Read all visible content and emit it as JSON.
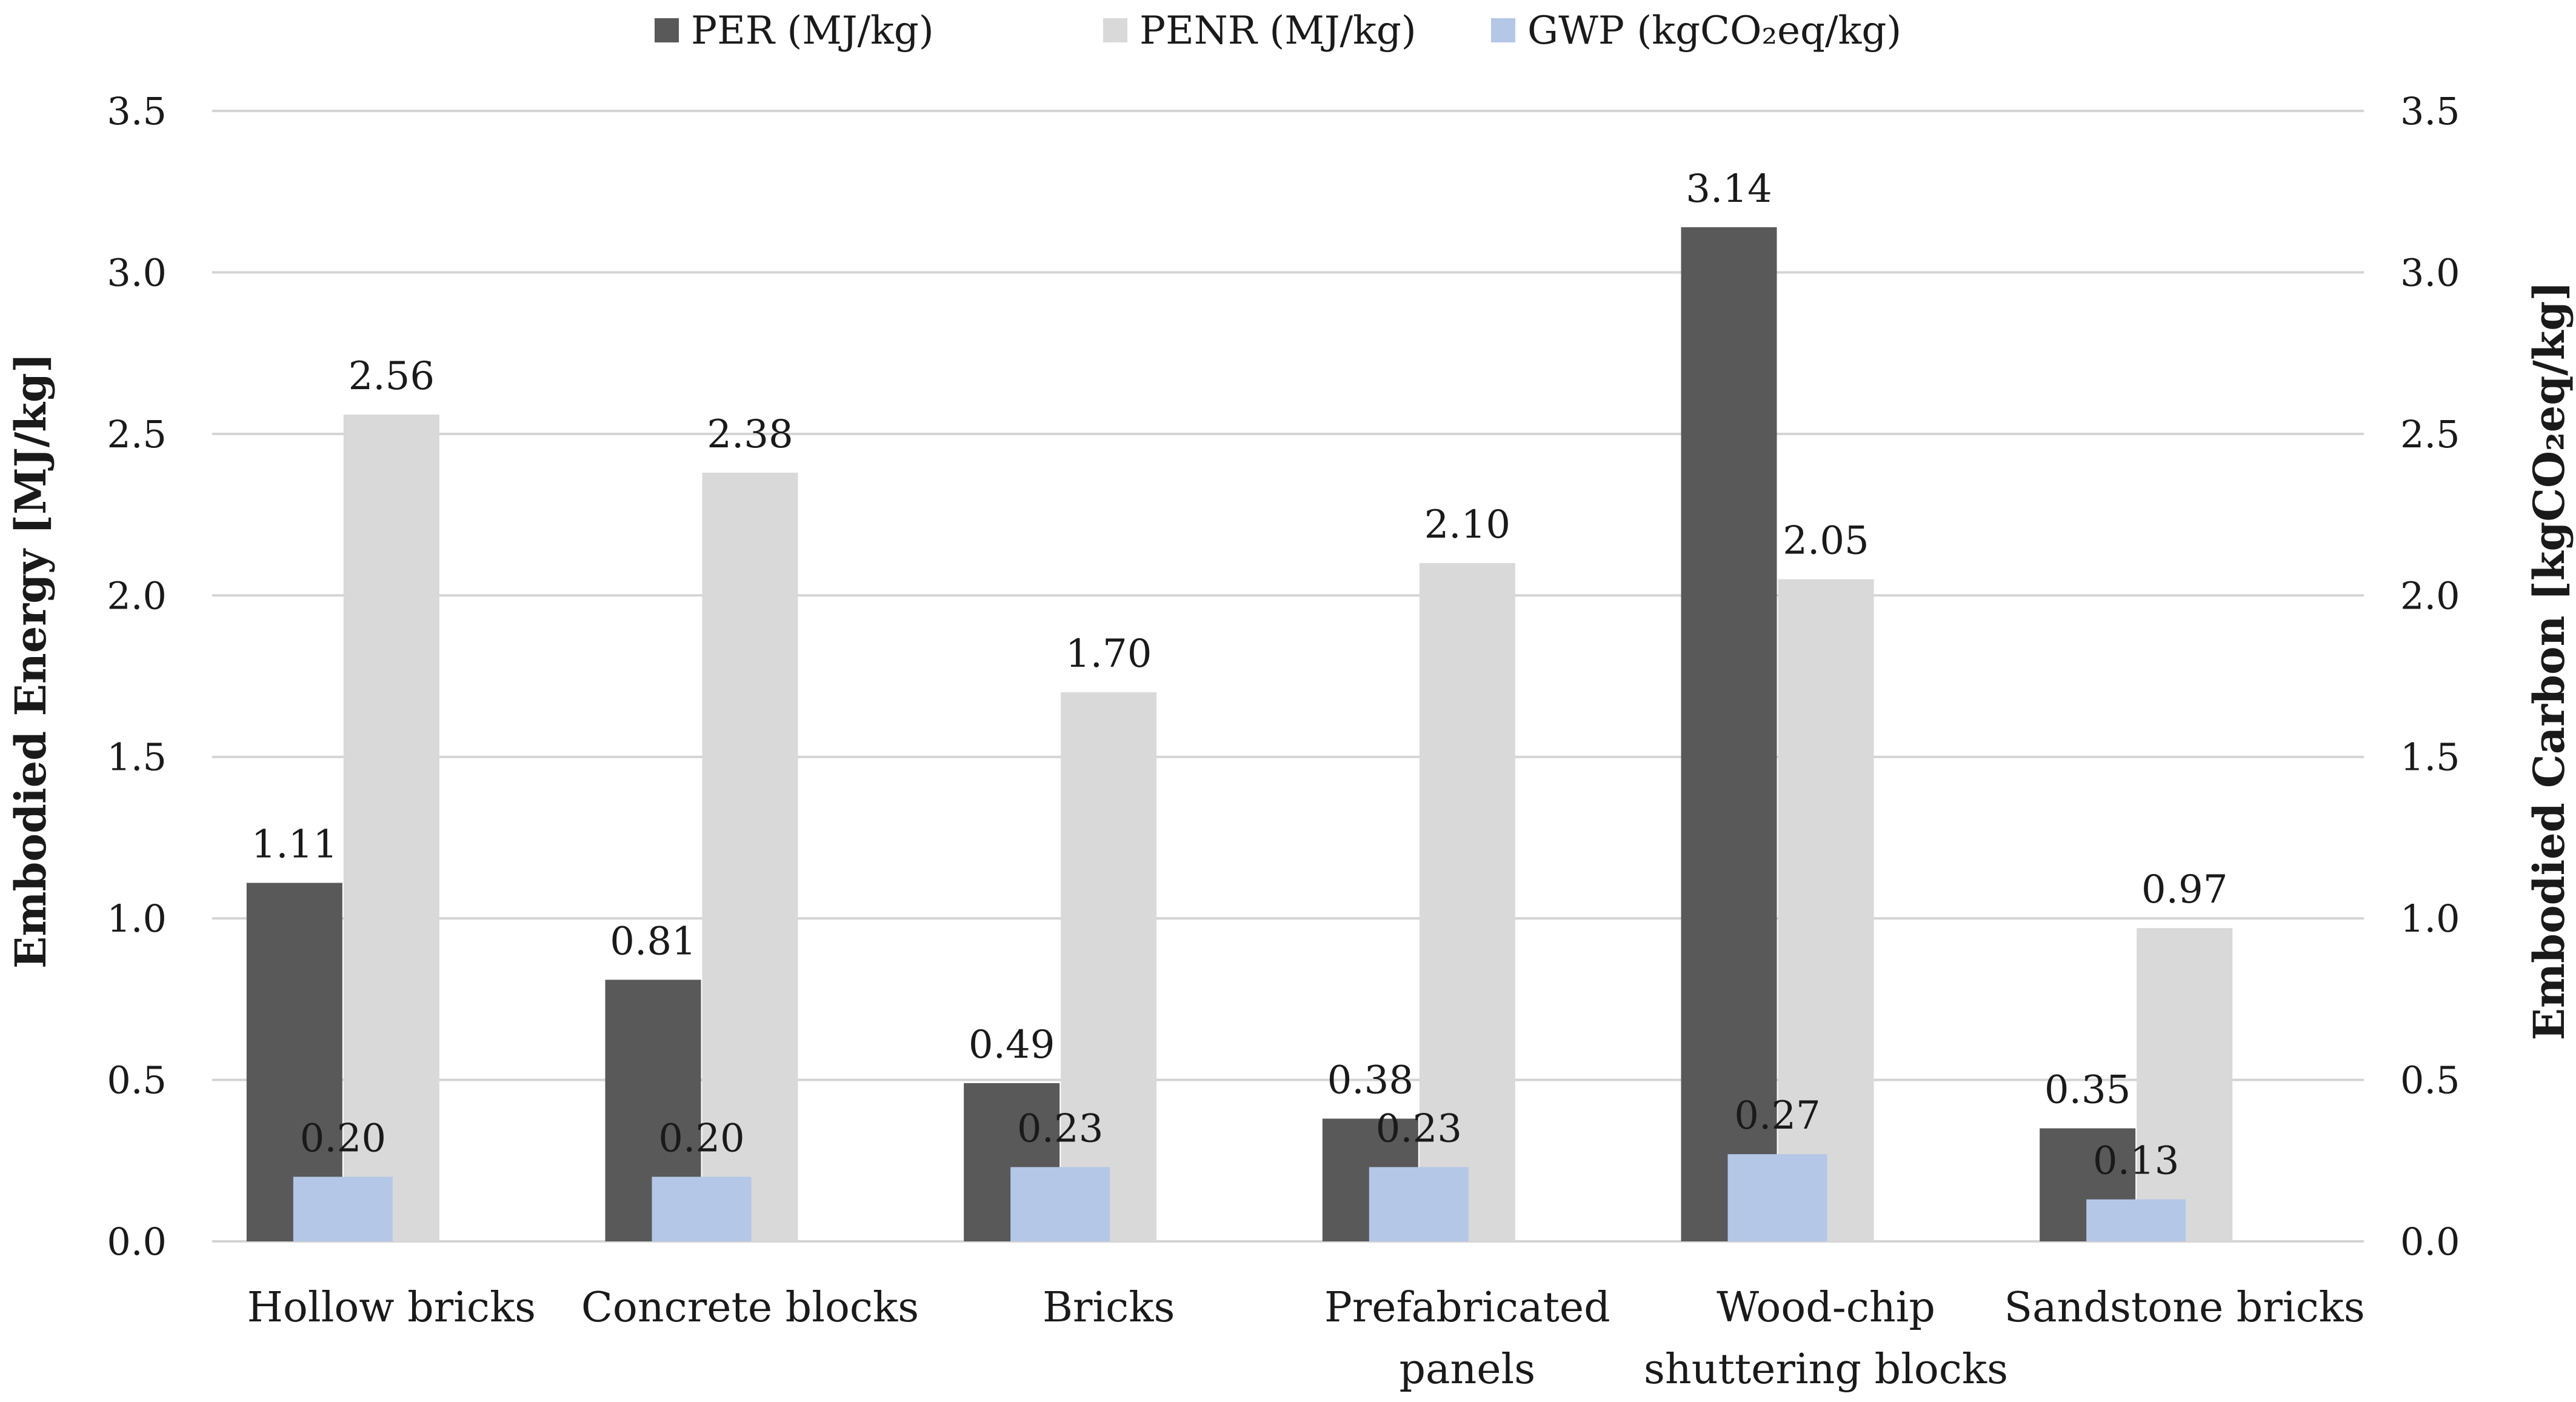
{
  "chart_data": {
    "type": "bar",
    "categories": [
      [
        "Hollow bricks"
      ],
      [
        "Concrete blocks"
      ],
      [
        "Bricks"
      ],
      [
        "Prefabricated",
        "panels"
      ],
      [
        "Wood-chip",
        "shuttering blocks"
      ],
      [
        "Sandstone bricks"
      ]
    ],
    "series": [
      {
        "name": "PER (MJ/kg)",
        "axis": "left",
        "color": "#595959",
        "values": [
          1.11,
          0.81,
          0.49,
          0.38,
          3.14,
          0.35
        ],
        "labels": [
          "1.11",
          "0.81",
          "0.49",
          "0.38",
          "3.14",
          "0.35"
        ]
      },
      {
        "name": "PENR (MJ/kg)",
        "axis": "left",
        "color": "#d9d9d9",
        "values": [
          2.56,
          2.38,
          1.7,
          2.1,
          2.05,
          0.97
        ],
        "labels": [
          "2.56",
          "2.38",
          "1.70",
          "2.10",
          "2.05",
          "0.97"
        ]
      },
      {
        "name": "GWP (kgCO₂eq/kg)",
        "axis": "right",
        "color": "#b4c7e7",
        "values": [
          0.2,
          0.2,
          0.23,
          0.23,
          0.27,
          0.13
        ],
        "labels": [
          "0.20",
          "0.20",
          "0.23",
          "0.23",
          "0.27",
          "0.13"
        ]
      }
    ],
    "ylabel": "Embodied Energy [MJ/kg]",
    "y2label": "Embodied Carbon [kgCO₂eq/kg]",
    "ylim": [
      0,
      3.5
    ],
    "y2lim": [
      0,
      3.5
    ],
    "yticks": [
      "0.0",
      "0.5",
      "1.0",
      "1.5",
      "2.0",
      "2.5",
      "3.0",
      "3.5"
    ],
    "y2ticks": [
      "0.0",
      "0.5",
      "1.0",
      "1.5",
      "2.0",
      "2.5",
      "3.0",
      "3.5"
    ],
    "grid": true,
    "legend": "top-center",
    "title": "",
    "xlabel": ""
  }
}
